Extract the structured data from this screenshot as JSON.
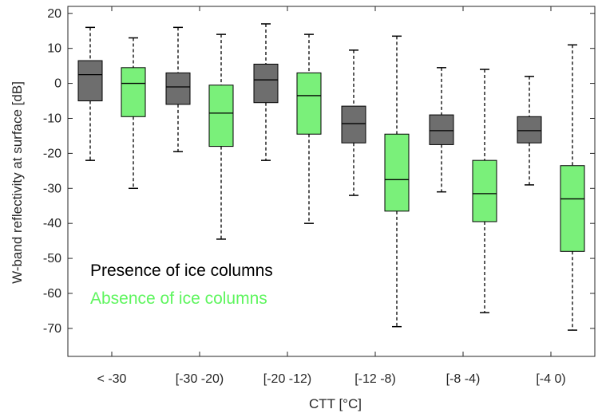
{
  "chart_data": {
    "type": "boxplot",
    "xlabel": "CTT [°C]",
    "ylabel": "W-band reflectivity at surface [dB]",
    "ylim": [
      -78,
      22
    ],
    "yticks": [
      20,
      10,
      0,
      -10,
      -20,
      -30,
      -40,
      -50,
      -60,
      -70
    ],
    "ytick_labels": [
      "20",
      "10",
      "0",
      "-10",
      "-20",
      "-30",
      "-40",
      "-50",
      "-60",
      "-70"
    ],
    "categories": [
      "< -30",
      "[-30 -20)",
      "[-20 -12)",
      "[-12 -8)",
      "[-8 -4)",
      "[-4 0)"
    ],
    "grid": false,
    "legend_position": "lower-left",
    "series": [
      {
        "name": "Presence of ice columns",
        "color": "#6e6e6e",
        "legend_color": "#000000",
        "boxes": [
          {
            "whisker_low": -22,
            "q1": -5,
            "median": 2.5,
            "q3": 6.5,
            "whisker_high": 16
          },
          {
            "whisker_low": -19.5,
            "q1": -6,
            "median": -1,
            "q3": 3,
            "whisker_high": 16
          },
          {
            "whisker_low": -22,
            "q1": -5.5,
            "median": 1,
            "q3": 5.5,
            "whisker_high": 17
          },
          {
            "whisker_low": -32,
            "q1": -17,
            "median": -11.5,
            "q3": -6.5,
            "whisker_high": 9.5
          },
          {
            "whisker_low": -31,
            "q1": -17.5,
            "median": -13.5,
            "q3": -9,
            "whisker_high": 4.5
          },
          {
            "whisker_low": -29,
            "q1": -17,
            "median": -13.5,
            "q3": -9.5,
            "whisker_high": 2
          }
        ]
      },
      {
        "name": "Absence of ice columns",
        "color": "#7af07a",
        "legend_color": "#5ef55e",
        "boxes": [
          {
            "whisker_low": -30,
            "q1": -9.5,
            "median": 0,
            "q3": 4.5,
            "whisker_high": 13
          },
          {
            "whisker_low": -44.5,
            "q1": -18,
            "median": -8.5,
            "q3": -0.5,
            "whisker_high": 14
          },
          {
            "whisker_low": -40,
            "q1": -14.5,
            "median": -3.5,
            "q3": 3,
            "whisker_high": 14
          },
          {
            "whisker_low": -69.5,
            "q1": -36.5,
            "median": -27.5,
            "q3": -14.5,
            "whisker_high": 13.5
          },
          {
            "whisker_low": -65.5,
            "q1": -39.5,
            "median": -31.5,
            "q3": -22,
            "whisker_high": 4
          },
          {
            "whisker_low": -70.5,
            "q1": -48,
            "median": -33,
            "q3": -23.5,
            "whisker_high": 11
          }
        ]
      }
    ]
  }
}
